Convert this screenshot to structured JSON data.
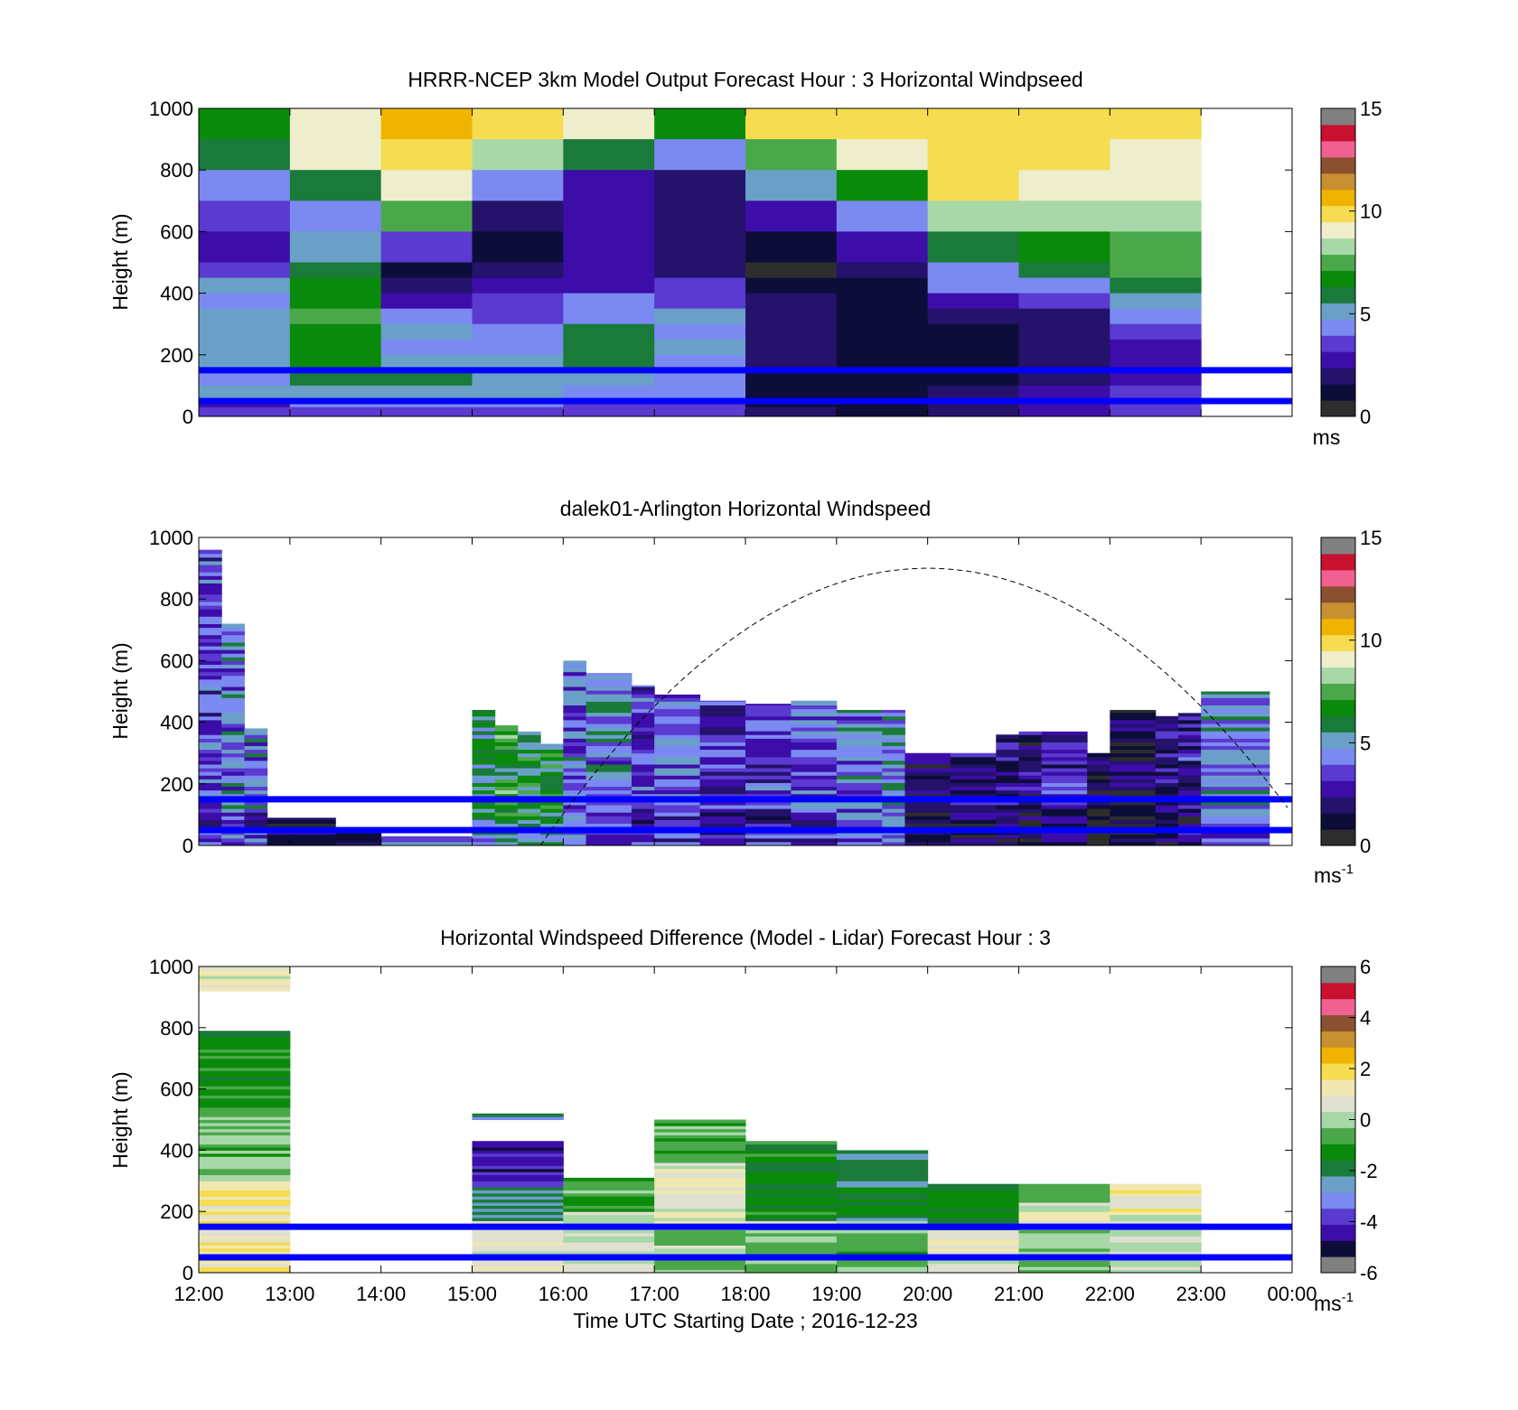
{
  "colors": {
    "wind_scale": [
      "#2d2d2d",
      "#0d0d3a",
      "#24126b",
      "#3c0da8",
      "#5a3ad0",
      "#7a8af0",
      "#6aa0c8",
      "#1a7a3a",
      "#0a8a0a",
      "#4aa84a",
      "#a8d8a8",
      "#eeeecc",
      "#f5dc50",
      "#f0b400",
      "#c89030",
      "#8a5030",
      "#f06090",
      "#c81030",
      "#808080"
    ],
    "diff_scale": [
      "#808080",
      "#0d0d3a",
      "#3c0da8",
      "#5a3ad0",
      "#7a8af0",
      "#6aa0c8",
      "#1a7a3a",
      "#0a8a0a",
      "#4aa84a",
      "#a8d8a8",
      "#e0e0d0",
      "#f0e8b0",
      "#f5dc50",
      "#f0b400",
      "#c89030",
      "#8a5030",
      "#f06090",
      "#c81030",
      "#808080"
    ],
    "ref_lines": "#0000ff"
  },
  "chart_data": [
    {
      "type": "heatmap",
      "title": "HRRR-NCEP 3km Model Output   Forecast Hour : 3 Horizontal Windpseed",
      "ylabel": "Height (m)",
      "ylim": [
        0,
        1000
      ],
      "yticks": [
        "1000",
        "800",
        "600",
        "400",
        "200",
        "0"
      ],
      "xlim": [
        12,
        24
      ],
      "colorbar": {
        "ticks": [
          "15",
          "10",
          "5",
          "0"
        ],
        "range": [
          0,
          15
        ],
        "unit": "ms"
      },
      "reference_lines_m": [
        150,
        50
      ],
      "hours": [
        12,
        13,
        14,
        15,
        16,
        17,
        18,
        19,
        20,
        21,
        22
      ],
      "levels_m": [
        1000,
        900,
        800,
        700,
        600,
        500,
        450,
        400,
        350,
        300,
        250,
        200,
        150,
        100,
        60,
        30,
        0
      ],
      "speeds_ms": [
        [
          6.8,
          5.8,
          4.5,
          3.5,
          2.2,
          3.2,
          4.6,
          4.4,
          4.8,
          4.7,
          4.6,
          4.8,
          4.3,
          4.6,
          2.8,
          3.5
        ],
        [
          9.5,
          8.8,
          6.0,
          4.5,
          4.8,
          5.8,
          6.6,
          6.9,
          7.1,
          6.9,
          6.6,
          6.4,
          5.9,
          5.3,
          4.5,
          3.5
        ],
        [
          10.8,
          9.8,
          8.9,
          7.6,
          3.3,
          0.7,
          1.8,
          2.6,
          4.2,
          4.7,
          4.5,
          5.2,
          6.2,
          4.6,
          4.2,
          3.5
        ],
        [
          9.8,
          8.7,
          4.5,
          1.4,
          0.8,
          1.7,
          2.4,
          3.3,
          3.7,
          4.3,
          4.4,
          4.6,
          5.1,
          4.6,
          4.4,
          3.5
        ],
        [
          9.2,
          6.2,
          2.8,
          2.2,
          2.1,
          2.3,
          2.9,
          4.5,
          4.5,
          5.9,
          6.1,
          5.6,
          5.3,
          4.5,
          3.5,
          3.0
        ],
        [
          6.7,
          4.5,
          2.0,
          1.3,
          1.5,
          1.9,
          3.5,
          3.6,
          4.6,
          4.4,
          4.6,
          4.3,
          3.8,
          4.5,
          3.5,
          3.0
        ],
        [
          9.8,
          7.6,
          4.8,
          2.7,
          1.1,
          0.2,
          0.9,
          1.5,
          1.6,
          1.7,
          1.8,
          1.7,
          1.2,
          0.8,
          0.7,
          1.5
        ],
        [
          9.6,
          9.5,
          6.8,
          4.5,
          2.9,
          1.8,
          1.2,
          1.1,
          0.8,
          0.7,
          0.6,
          0.8,
          0.9,
          0.6,
          0.7,
          0.8
        ],
        [
          10.2,
          9.9,
          9.6,
          8.3,
          5.8,
          4.5,
          4.2,
          2.3,
          1.7,
          1.2,
          1.0,
          0.9,
          1.1,
          1.5,
          1.8,
          1.5
        ],
        [
          10.2,
          10.0,
          9.5,
          8.5,
          6.8,
          5.5,
          4.5,
          3.2,
          2.0,
          1.8,
          1.6,
          1.9,
          2.0,
          2.6,
          2.5,
          2.9
        ],
        [
          9.8,
          9.5,
          9.3,
          8.7,
          7.8,
          7.3,
          6.2,
          5.3,
          4.2,
          3.2,
          2.4,
          2.3,
          2.9,
          3.2,
          3.4,
          3.6
        ]
      ]
    },
    {
      "type": "heatmap",
      "title": "dalek01-Arlington  Horizontal Windspeed",
      "ylabel": "Height (m)",
      "ylim": [
        0,
        1000
      ],
      "yticks": [
        "1000",
        "800",
        "600",
        "400",
        "200",
        "0"
      ],
      "xlim": [
        12,
        24
      ],
      "colorbar": {
        "ticks": [
          "15",
          "10",
          "5",
          "0"
        ],
        "range": [
          0,
          15
        ],
        "unit": "ms",
        "unit_exponent": "-1"
      },
      "reference_lines_m": [
        150,
        50
      ],
      "solar_elevation_curve": {
        "peak_time": 20.0,
        "peak_height_m": 900,
        "zero_time": 15.75
      },
      "columns": [
        {
          "t": [
            12.0,
            12.25
          ],
          "top_m": 960,
          "mean_ms": 3.5
        },
        {
          "t": [
            12.25,
            12.5
          ],
          "top_m": 720,
          "mean_ms": 4.2
        },
        {
          "t": [
            12.5,
            12.75
          ],
          "top_m": 380,
          "mean_ms": 4.0
        },
        {
          "t": [
            12.75,
            13.5
          ],
          "top_m": 90,
          "mean_ms": 2.0
        },
        {
          "t": [
            13.5,
            14.0
          ],
          "top_m": 50,
          "mean_ms": 2.2
        },
        {
          "t": [
            14.0,
            15.0
          ],
          "top_m": 30,
          "mean_ms": 5.0
        },
        {
          "t": [
            15.0,
            15.25
          ],
          "top_m": 440,
          "mean_ms": 5.6
        },
        {
          "t": [
            15.25,
            15.5
          ],
          "top_m": 390,
          "mean_ms": 6.5
        },
        {
          "t": [
            15.5,
            15.75
          ],
          "top_m": 370,
          "mean_ms": 6.3
        },
        {
          "t": [
            15.75,
            16.0
          ],
          "top_m": 330,
          "mean_ms": 6.0
        },
        {
          "t": [
            16.0,
            16.25
          ],
          "top_m": 600,
          "mean_ms": 4.0
        },
        {
          "t": [
            16.25,
            16.75
          ],
          "top_m": 560,
          "mean_ms": 4.4
        },
        {
          "t": [
            16.75,
            17.0
          ],
          "top_m": 520,
          "mean_ms": 3.2
        },
        {
          "t": [
            17.0,
            17.5
          ],
          "top_m": 490,
          "mean_ms": 3.8
        },
        {
          "t": [
            17.5,
            18.0
          ],
          "top_m": 470,
          "mean_ms": 3.0
        },
        {
          "t": [
            18.0,
            18.5
          ],
          "top_m": 460,
          "mean_ms": 3.1
        },
        {
          "t": [
            18.5,
            19.0
          ],
          "top_m": 470,
          "mean_ms": 3.6
        },
        {
          "t": [
            19.0,
            19.5
          ],
          "top_m": 440,
          "mean_ms": 4.3
        },
        {
          "t": [
            19.5,
            19.75
          ],
          "top_m": 440,
          "mean_ms": 4.6
        },
        {
          "t": [
            19.75,
            20.25
          ],
          "top_m": 300,
          "mean_ms": 1.4
        },
        {
          "t": [
            20.25,
            20.75
          ],
          "top_m": 300,
          "mean_ms": 1.7
        },
        {
          "t": [
            20.75,
            21.0
          ],
          "top_m": 360,
          "mean_ms": 2.0
        },
        {
          "t": [
            21.0,
            21.25
          ],
          "top_m": 370,
          "mean_ms": 1.8
        },
        {
          "t": [
            21.25,
            21.75
          ],
          "top_m": 370,
          "mean_ms": 2.4
        },
        {
          "t": [
            21.75,
            22.0
          ],
          "top_m": 300,
          "mean_ms": 1.2
        },
        {
          "t": [
            22.0,
            22.5
          ],
          "top_m": 440,
          "mean_ms": 1.4
        },
        {
          "t": [
            22.5,
            22.75
          ],
          "top_m": 420,
          "mean_ms": 2.2
        },
        {
          "t": [
            22.75,
            23.0
          ],
          "top_m": 430,
          "mean_ms": 2.3
        },
        {
          "t": [
            23.0,
            23.75
          ],
          "top_m": 500,
          "mean_ms": 4.5
        },
        {
          "t": [
            23.75,
            24.0
          ],
          "top_m": 0,
          "mean_ms": 0
        }
      ]
    },
    {
      "type": "heatmap",
      "title": "Horizontal Windspeed Difference (Model - Lidar) Forecast Hour : 3",
      "xlabel": "Time UTC  Starting Date ; 2016-12-23",
      "ylabel": "Height (m)",
      "ylim": [
        0,
        1000
      ],
      "yticks": [
        "1000",
        "800",
        "600",
        "400",
        "200",
        "0"
      ],
      "xlim": [
        12,
        24
      ],
      "xticks": [
        "12:00",
        "13:00",
        "14:00",
        "15:00",
        "16:00",
        "17:00",
        "18:00",
        "19:00",
        "20:00",
        "21:00",
        "22:00",
        "23:00",
        "00:00"
      ],
      "colorbar": {
        "ticks": [
          "6",
          "4",
          "2",
          "0",
          "-2",
          "-4",
          "-6"
        ],
        "range": [
          -6,
          6
        ],
        "unit": "ms",
        "unit_exponent": "-1"
      },
      "reference_lines_m": [
        150,
        50
      ],
      "columns": [
        {
          "t": [
            12,
            13
          ],
          "segments": [
            [
              0,
              300,
              1.5
            ],
            [
              300,
              520,
              -0.6
            ],
            [
              520,
              790,
              -1.3
            ],
            [
              920,
              1000,
              0.8
            ]
          ]
        },
        {
          "t": [
            15,
            16
          ],
          "segments": [
            [
              0,
              170,
              0.7
            ],
            [
              170,
              280,
              -2.3
            ],
            [
              280,
              430,
              -4.5
            ],
            [
              500,
              520,
              -2.4
            ]
          ]
        },
        {
          "t": [
            16,
            17
          ],
          "segments": [
            [
              0,
              200,
              0.5
            ],
            [
              200,
              310,
              -1.0
            ]
          ]
        },
        {
          "t": [
            17,
            18
          ],
          "segments": [
            [
              0,
              160,
              -0.2
            ],
            [
              160,
              360,
              0.9
            ],
            [
              360,
              500,
              -0.9
            ]
          ]
        },
        {
          "t": [
            18,
            19
          ],
          "segments": [
            [
              0,
              170,
              -0.3
            ],
            [
              170,
              430,
              -1.6
            ]
          ]
        },
        {
          "t": [
            19,
            20
          ],
          "segments": [
            [
              0,
              170,
              -0.4
            ],
            [
              170,
              400,
              -2.1
            ]
          ]
        },
        {
          "t": [
            20,
            21
          ],
          "segments": [
            [
              0,
              140,
              0.9
            ],
            [
              140,
              290,
              -1.3
            ]
          ]
        },
        {
          "t": [
            21,
            22
          ],
          "segments": [
            [
              0,
              160,
              -0.3
            ],
            [
              160,
              230,
              0.8
            ],
            [
              230,
              290,
              -0.8
            ]
          ]
        },
        {
          "t": [
            22,
            23
          ],
          "segments": [
            [
              0,
              190,
              0.3
            ],
            [
              190,
              290,
              1.1
            ]
          ]
        }
      ]
    }
  ]
}
